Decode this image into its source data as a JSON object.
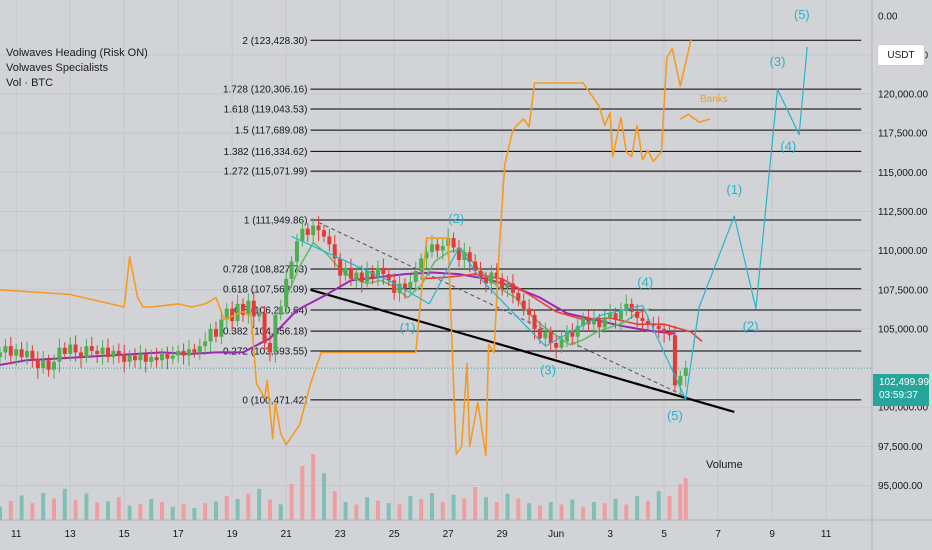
{
  "indicators": [
    "Volwaves Heading (Risk ON)",
    "Volwaves Specialists",
    "Vol · BTC"
  ],
  "currency": "USDT",
  "last_price": "102,499.99",
  "countdown": "03:59:37",
  "colors": {
    "background": "#d2d3d7",
    "up_candle": "#4caf50",
    "down_candle": "#e53935",
    "banks_line": "#f59b22",
    "elliott": "#26b4cc",
    "ma_red": "#ef3b3b",
    "ma_purple": "#9c27b0",
    "ma_green": "#66bb6a",
    "trendline": "#000000",
    "vol_up": "#7fbfb4",
    "vol_down": "#ee9ea0",
    "price_tag": "#26a69a"
  },
  "chart_data": {
    "type": "line",
    "title": "",
    "y_axis": {
      "ticks": [
        "0.00",
        "122,500.00",
        "120,000.00",
        "117,500.00",
        "115,000.00",
        "112,500.00",
        "110,000.00",
        "107,500.00",
        "105,000.00",
        "100,000.00",
        "97,500.00",
        "95,000.00"
      ],
      "tick_values": [
        null,
        122500,
        120000,
        117500,
        115000,
        112500,
        110000,
        107500,
        105000,
        100000,
        97500,
        95000
      ],
      "range": [
        92800,
        126000
      ]
    },
    "x_axis": {
      "ticks": [
        "11",
        "13",
        "15",
        "17",
        "19",
        "21",
        "23",
        "25",
        "27",
        "29",
        "Jun",
        "3",
        "5",
        "7",
        "9",
        "11"
      ],
      "tick_positions": [
        -9,
        -7,
        -5,
        -3,
        -1,
        1,
        3,
        5,
        7,
        9,
        11,
        13,
        15,
        17,
        19,
        21
      ],
      "range": [
        -9.6,
        22.7
      ],
      "note_units": "days relative to May 21"
    },
    "fib_levels": [
      {
        "label": "2 (123,428.30)",
        "value": 123428.3
      },
      {
        "label": "1.728 (120,306.16)",
        "value": 120306.16
      },
      {
        "label": "1.618 (119,043.53)",
        "value": 119043.53
      },
      {
        "label": "1.5 (117,689.08)",
        "value": 117689.08
      },
      {
        "label": "1.382 (116,334.62)",
        "value": 116334.62
      },
      {
        "label": "1.272 (115,071.99)",
        "value": 115071.99
      },
      {
        "label": "1 (111,949.86)",
        "value": 111949.86
      },
      {
        "label": "0.728 (108,827.73)",
        "value": 108827.73
      },
      {
        "label": "0.618 (107,563.09)",
        "value": 107563.09
      },
      {
        "label": "0.5 (106,210.64)",
        "value": 106210.64
      },
      {
        "label": "0.382 (104,856.18)",
        "value": 104856.18
      },
      {
        "label": "0.272 (103,593.55)",
        "value": 103593.55
      },
      {
        "label": "0 (100,471.42)",
        "value": 100471.42
      }
    ],
    "fib_x_range": [
      1.9,
      22.3
    ],
    "current_price_line": 102499.99,
    "series": [
      {
        "name": "Banks",
        "x": [
          -9.6,
          -7.0,
          -5.0,
          -4.8,
          -4.5,
          -4.3,
          -4.0,
          -3.5,
          -3.0,
          -2.5,
          -2.0,
          -1.6,
          -1.3,
          -0.6,
          -0.3,
          -0.1,
          0.2,
          0.3,
          0.5,
          0.6,
          0.8,
          1.0,
          1.5,
          1.9,
          2.3,
          3.0,
          4.0,
          5.0,
          5.8,
          6.2,
          7.0,
          7.3,
          7.5,
          7.7,
          7.8,
          8.1,
          8.4,
          8.5,
          8.7,
          8.9,
          9.1,
          9.4,
          9.6,
          9.8,
          10.0,
          10.2,
          10.4,
          10.6,
          10.8,
          11.0,
          11.5,
          12.0,
          12.2,
          12.6,
          12.8,
          13.0,
          13.1,
          13.4,
          13.6,
          13.8,
          14.0,
          14.2,
          14.4,
          14.6,
          14.9,
          15.1,
          15.3,
          15.6,
          16.0
        ],
        "y": [
          107500,
          107200,
          106400,
          109600,
          107000,
          106400,
          106400,
          106500,
          106600,
          106400,
          106600,
          107000,
          105600,
          106100,
          105800,
          101500,
          100600,
          101700,
          98000,
          100300,
          98300,
          97600,
          98900,
          101500,
          103500,
          103500,
          103500,
          103500,
          103500,
          110800,
          110800,
          97000,
          97500,
          102800,
          97500,
          100300,
          96900,
          104000,
          103500,
          110300,
          115500,
          117700,
          118100,
          118400,
          117900,
          120700,
          120700,
          120700,
          120700,
          120700,
          120700,
          120700,
          120200,
          119200,
          118000,
          118800,
          116000,
          118500,
          116300,
          116000,
          118000,
          115800,
          116400,
          115700,
          116300,
          122300,
          122900,
          120500,
          123500
        ],
        "extra": {
          "x": [
            15.6,
            15.9,
            16.3,
            16.7
          ],
          "y": [
            118400,
            118700,
            118200,
            118400
          ],
          "label": "Banks",
          "label_x": 16.7,
          "label_y": 119500
        }
      }
    ],
    "elliott_waves": [
      {
        "label": "(1)",
        "x": 5.5,
        "y": 104800
      },
      {
        "label": "(2)",
        "x": 7.3,
        "y": 111750
      },
      {
        "label": "(3)",
        "x": 10.7,
        "y": 102100
      },
      {
        "label": "(4)",
        "x": 14.3,
        "y": 107700
      },
      {
        "label": "(5)",
        "x": 15.4,
        "y": 99200
      },
      {
        "label": "(1)",
        "x": 17.6,
        "y": 113600
      },
      {
        "label": "(2)",
        "x": 18.2,
        "y": 104900
      },
      {
        "label": "(3)",
        "x": 19.2,
        "y": 121800
      },
      {
        "label": "(4)",
        "x": 19.6,
        "y": 116400
      },
      {
        "label": "(5)",
        "x": 20.1,
        "y": 124800
      }
    ],
    "wave_path": {
      "x": [
        1.2,
        4.9,
        6.3,
        7.4,
        8.2,
        10.6,
        12.7,
        14.2,
        15.8,
        16.3,
        17.6,
        18.4,
        19.2,
        20.0,
        20.3
      ],
      "y": [
        110900,
        108000,
        106600,
        110200,
        108200,
        103900,
        105900,
        106500,
        100500,
        106400,
        112200,
        106300,
        120300,
        117400,
        123000
      ]
    },
    "trendline": {
      "x": [
        1.9,
        17.6
      ],
      "y": [
        107500,
        99700
      ]
    },
    "dashed_trendline": {
      "x": [
        2.2,
        15.9
      ],
      "y": [
        111800,
        100600
      ]
    },
    "ma_red": {
      "x": [
        6.0,
        7.0,
        8.0,
        9.0,
        10.0,
        11.0,
        12.0,
        13.0,
        14.0,
        15.0,
        16.0,
        16.4
      ],
      "y": [
        108200,
        108300,
        108500,
        108200,
        107200,
        106100,
        105600,
        105700,
        105300,
        105300,
        104800,
        104200
      ]
    },
    "ma_purple": {
      "x": [
        -9.6,
        -8.6,
        -7.6,
        -6.6,
        -5.6,
        -4.6,
        -3.6,
        -2.6,
        -1.6,
        -0.6,
        0.4,
        1.4,
        2.4,
        3.4,
        4.4,
        5.4,
        6.4,
        7.4,
        8.4,
        9.4,
        10.4,
        11.4,
        12.4,
        13.4,
        14.4,
        15.4
      ],
      "y": [
        102700,
        103000,
        103100,
        103200,
        103300,
        103400,
        103500,
        103400,
        103500,
        103500,
        104400,
        106200,
        107100,
        108100,
        108300,
        108500,
        108600,
        108500,
        108200,
        107700,
        107000,
        106000,
        105600,
        105200,
        104900,
        104700
      ]
    },
    "ma_green": {
      "x": [
        1.0,
        1.5,
        2.0,
        2.5,
        3.0,
        3.5,
        4.0,
        4.5,
        5.0,
        5.5,
        6.0,
        6.5,
        7.0,
        7.5,
        8.0,
        8.5,
        9.0,
        9.5,
        10.0,
        10.5,
        11.0,
        11.5,
        12.0,
        12.5,
        13.0,
        13.5,
        14.0,
        14.5
      ],
      "y": [
        107000,
        109000,
        110500,
        109800,
        108800,
        108200,
        107900,
        108100,
        107700,
        107000,
        107800,
        109300,
        109900,
        110100,
        109100,
        108200,
        107500,
        107000,
        106000,
        105200,
        104600,
        104000,
        104300,
        104800,
        105100,
        105400,
        106000,
        106300
      ]
    },
    "candles": {
      "x": [
        -9.6,
        -9.4,
        -9.2,
        -9.0,
        -8.8,
        -8.6,
        -8.4,
        -8.2,
        -8.0,
        -7.8,
        -7.6,
        -7.4,
        -7.2,
        -7.0,
        -6.8,
        -6.6,
        -6.4,
        -6.2,
        -6.0,
        -5.8,
        -5.6,
        -5.4,
        -5.2,
        -5.0,
        -4.8,
        -4.6,
        -4.4,
        -4.2,
        -4.0,
        -3.8,
        -3.6,
        -3.4,
        -3.2,
        -3.0,
        -2.8,
        -2.6,
        -2.4,
        -2.2,
        -2.0,
        -1.8,
        -1.6,
        -1.4,
        -1.2,
        -1.0,
        -0.8,
        -0.6,
        -0.4,
        -0.2,
        0.0,
        0.2,
        0.4,
        0.6,
        0.8,
        1.0,
        1.2,
        1.4,
        1.6,
        1.8,
        2.0,
        2.2,
        2.4,
        2.6,
        2.8,
        3.0,
        3.2,
        3.4,
        3.6,
        3.8,
        4.0,
        4.2,
        4.4,
        4.6,
        4.8,
        5.0,
        5.2,
        5.4,
        5.6,
        5.8,
        6.0,
        6.2,
        6.4,
        6.6,
        6.8,
        7.0,
        7.2,
        7.4,
        7.6,
        7.8,
        8.0,
        8.2,
        8.4,
        8.6,
        8.8,
        9.0,
        9.2,
        9.4,
        9.6,
        9.8,
        10.0,
        10.2,
        10.4,
        10.6,
        10.8,
        11.0,
        11.2,
        11.4,
        11.6,
        11.8,
        12.0,
        12.2,
        12.4,
        12.6,
        12.8,
        13.0,
        13.2,
        13.4,
        13.6,
        13.8,
        14.0,
        14.2,
        14.4,
        14.6,
        14.8,
        15.0,
        15.2,
        15.4,
        15.6,
        15.8
      ],
      "close": [
        103500,
        103900,
        103300,
        103700,
        103200,
        103600,
        103100,
        102500,
        103000,
        102400,
        102900,
        103800,
        103400,
        104000,
        103500,
        103200,
        103900,
        103600,
        103400,
        103800,
        103200,
        103600,
        103400,
        102900,
        103300,
        103000,
        103400,
        102900,
        103200,
        103000,
        103400,
        103100,
        103300,
        103600,
        103300,
        103700,
        103500,
        103900,
        104200,
        105000,
        104500,
        105600,
        106300,
        105500,
        106600,
        105900,
        106800,
        105800,
        106000,
        104100,
        103500,
        105900,
        106400,
        108200,
        109300,
        110600,
        111400,
        111000,
        111600,
        111300,
        110900,
        110400,
        109500,
        108400,
        108900,
        108200,
        108600,
        108000,
        108700,
        108300,
        108900,
        108500,
        108100,
        107300,
        107900,
        107600,
        108000,
        108700,
        109500,
        109900,
        110400,
        110000,
        110300,
        110800,
        110200,
        109400,
        109900,
        109300,
        108700,
        108300,
        107900,
        108600,
        108200,
        107600,
        107900,
        107300,
        106800,
        106300,
        105900,
        105000,
        104400,
        104800,
        104100,
        103800,
        104300,
        104900,
        104500,
        105200,
        105700,
        105300,
        105600,
        105100,
        105700,
        106000,
        105600,
        106200,
        106600,
        106100,
        105700,
        105500,
        105300,
        105200,
        105000,
        104800,
        104600,
        101400,
        102000,
        102500
      ],
      "note": "approximate close values per candle, oldest to newest"
    },
    "volume": {
      "x": [
        -9.6,
        -9.2,
        -8.8,
        -8.4,
        -8.0,
        -7.6,
        -7.2,
        -6.8,
        -6.4,
        -6.0,
        -5.6,
        -5.2,
        -4.8,
        -4.4,
        -4.0,
        -3.6,
        -3.2,
        -2.8,
        -2.4,
        -2.0,
        -1.6,
        -1.2,
        -0.8,
        -0.4,
        0.0,
        0.4,
        0.8,
        1.2,
        1.6,
        2.0,
        2.4,
        2.8,
        3.2,
        3.6,
        4.0,
        4.4,
        4.8,
        5.2,
        5.6,
        6.0,
        6.4,
        6.8,
        7.2,
        7.6,
        8.0,
        8.4,
        8.8,
        9.2,
        9.6,
        10.0,
        10.4,
        10.8,
        11.2,
        11.6,
        12.0,
        12.4,
        12.8,
        13.2,
        13.6,
        14.0,
        14.4,
        14.8,
        15.2,
        15.6,
        15.8
      ],
      "values": [
        22,
        32,
        41,
        28,
        45,
        36,
        52,
        33,
        44,
        29,
        31,
        38,
        24,
        27,
        35,
        30,
        22,
        26,
        20,
        28,
        31,
        40,
        35,
        44,
        52,
        34,
        26,
        60,
        90,
        110,
        78,
        48,
        30,
        26,
        38,
        32,
        28,
        26,
        40,
        35,
        45,
        30,
        42,
        36,
        55,
        38,
        30,
        44,
        36,
        28,
        24,
        30,
        26,
        34,
        22,
        30,
        28,
        35,
        26,
        40,
        32,
        48,
        40,
        60,
        70
      ],
      "up_down": [
        "u",
        "d",
        "u",
        "d",
        "u",
        "d",
        "u",
        "d",
        "u",
        "d",
        "u",
        "d",
        "u",
        "d",
        "u",
        "d",
        "u",
        "d",
        "u",
        "d",
        "u",
        "d",
        "u",
        "d",
        "u",
        "d",
        "u",
        "d",
        "d",
        "d",
        "u",
        "d",
        "u",
        "d",
        "u",
        "d",
        "u",
        "d",
        "u",
        "d",
        "u",
        "d",
        "u",
        "d",
        "d",
        "u",
        "d",
        "u",
        "d",
        "u",
        "d",
        "u",
        "d",
        "u",
        "d",
        "u",
        "d",
        "u",
        "d",
        "u",
        "d",
        "u",
        "d",
        "d",
        "d"
      ],
      "label": "Volume"
    }
  }
}
